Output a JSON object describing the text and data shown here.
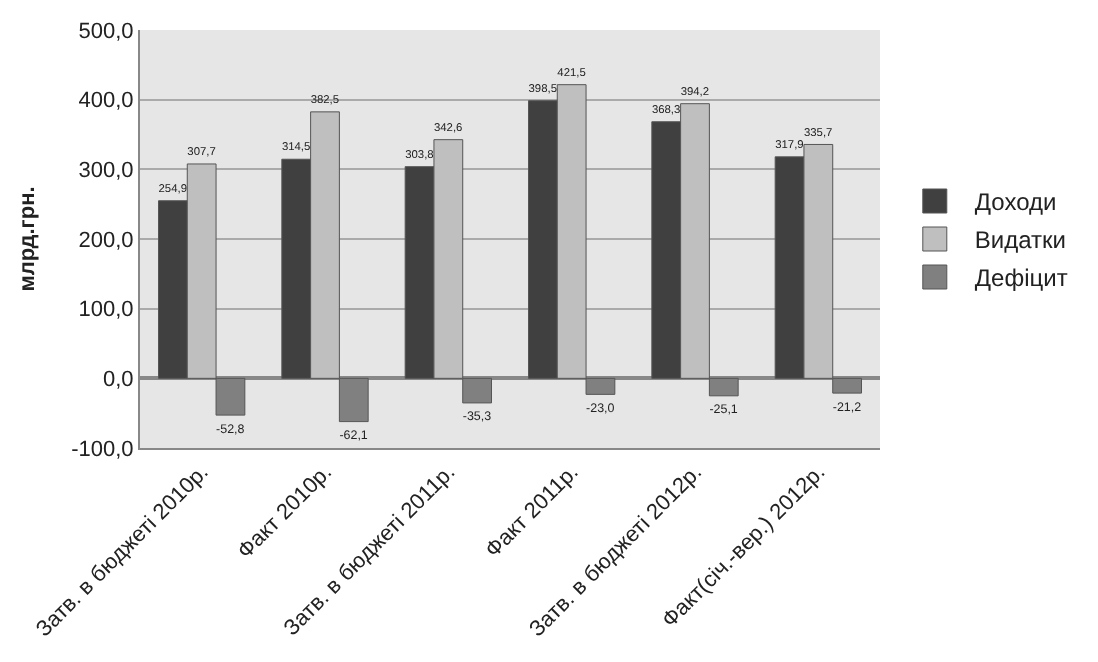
{
  "chart_data": {
    "type": "bar",
    "ylabel": "млрд.грн.",
    "categories": [
      "Затв. в бюджеті 2010р.",
      "Факт 2010р.",
      "Затв. в бюджеті 2011р.",
      "Факт 2011р.",
      "Затв. в бюджеті 2012р.",
      "Факт(січ.-вер.) 2012р."
    ],
    "series": [
      {
        "name": "Доходи",
        "color": "#404040",
        "values": [
          254.9,
          314.5,
          303.8,
          398.5,
          368.3,
          317.9
        ],
        "value_labels": [
          "254,9",
          "314,5",
          "303,8",
          "398,5",
          "368,3",
          "317,9"
        ]
      },
      {
        "name": "Видатки",
        "color": "#bfbfbf",
        "values": [
          307.7,
          382.5,
          342.6,
          421.5,
          394.2,
          335.7
        ],
        "value_labels": [
          "307,7",
          "382,5",
          "342,6",
          "421,5",
          "394,2",
          "335,7"
        ]
      },
      {
        "name": "Дефіцит",
        "color": "#808080",
        "values": [
          -52.8,
          -62.1,
          -35.3,
          -23.0,
          -25.1,
          -21.2
        ],
        "value_labels": [
          "-52,8",
          "-62,1",
          "-35,3",
          "-23,0",
          "-25,1",
          "-21,2"
        ]
      }
    ],
    "ylim": [
      -100,
      500
    ],
    "yticks": [
      {
        "value": -100,
        "label": "-100,0"
      },
      {
        "value": 0,
        "label": "0,0"
      },
      {
        "value": 100,
        "label": "100,0"
      },
      {
        "value": 200,
        "label": "200,0"
      },
      {
        "value": 300,
        "label": "300,0"
      },
      {
        "value": 400,
        "label": "400,0"
      },
      {
        "value": 500,
        "label": "500,0"
      }
    ],
    "grid": true,
    "legend": "right"
  }
}
